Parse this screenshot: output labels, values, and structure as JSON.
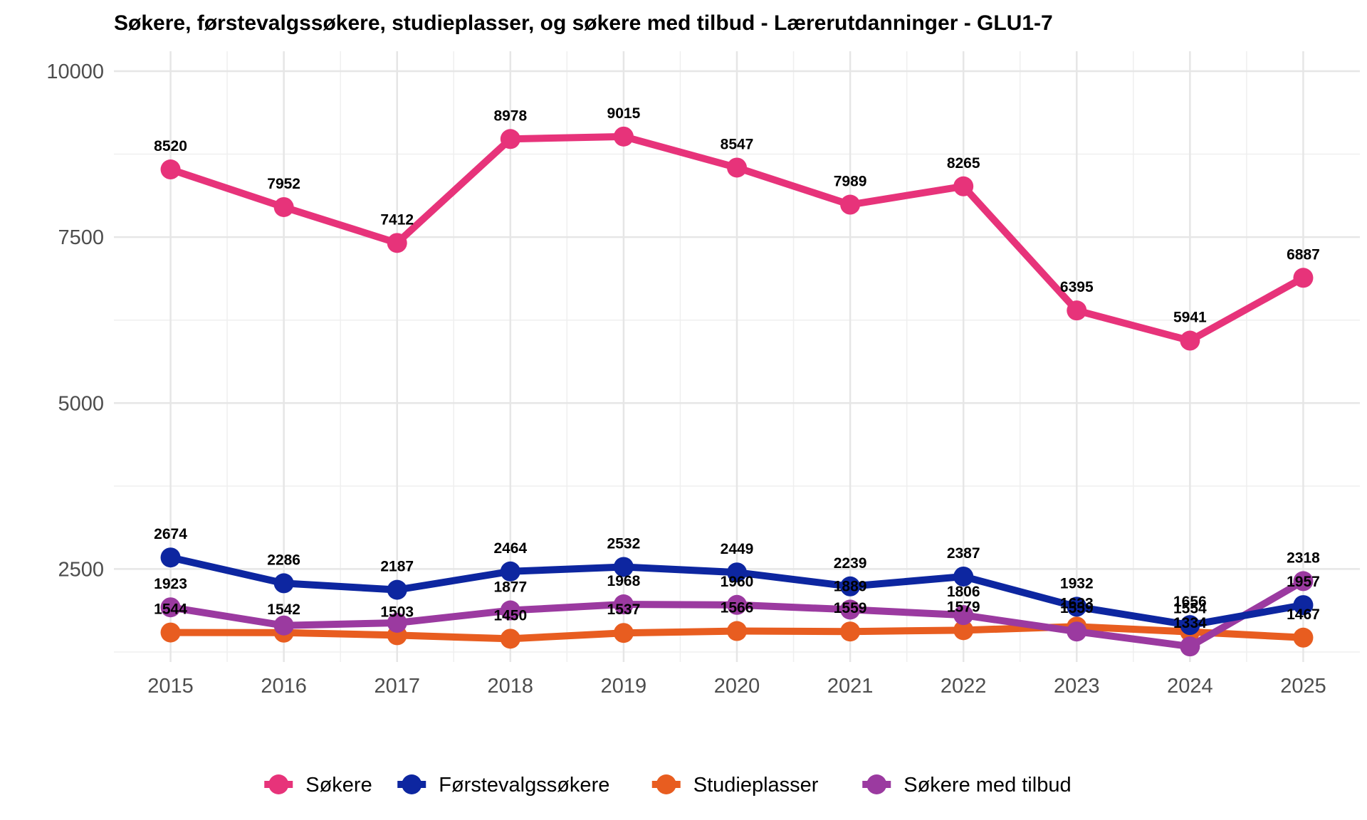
{
  "chart_data": {
    "type": "line",
    "title": "Søkere, førstevalgssøkere, studieplasser, og søkere med tilbud - Lærerutdanninger - GLU1-7",
    "xlabel": "",
    "ylabel": "",
    "x": [
      2015,
      2016,
      2017,
      2018,
      2019,
      2020,
      2021,
      2022,
      2023,
      2024,
      2025
    ],
    "x_tick_labels": [
      "2015",
      "2016",
      "2017",
      "2018",
      "2019",
      "2020",
      "2021",
      "2022",
      "2023",
      "2024",
      "2025"
    ],
    "y_ticks": [
      2500,
      5000,
      7500,
      10000
    ],
    "y_tick_labels": [
      "2500",
      "5000",
      "7500",
      "10000"
    ],
    "ylim": [
      1100,
      10300
    ],
    "grid": true,
    "legend_position": "bottom",
    "series": [
      {
        "name": "Søkere",
        "color": "#E7337A",
        "values": [
          8520,
          7952,
          7412,
          8978,
          9015,
          8547,
          7989,
          8265,
          6395,
          5941,
          6887
        ]
      },
      {
        "name": "Førstevalgssøkere",
        "color": "#0D26A0",
        "values": [
          2674,
          2286,
          2187,
          2464,
          2532,
          2449,
          2239,
          2387,
          1932,
          1656,
          1957
        ]
      },
      {
        "name": "Studieplasser",
        "color": "#E85D20",
        "values": [
          1544,
          1542,
          1503,
          1450,
          1537,
          1566,
          1559,
          1579,
          1633,
          1554,
          1467
        ]
      },
      {
        "name": "Søkere med tilbud",
        "color": "#9B3AA0",
        "values": [
          1923,
          1650,
          1690,
          1877,
          1968,
          1960,
          1889,
          1806,
          1559,
          1334,
          2318
        ]
      }
    ],
    "data_labels": [
      {
        "series": 0,
        "values": [
          "8520",
          "7952",
          "7412",
          "8978",
          "9015",
          "8547",
          "7989",
          "8265",
          "6395",
          "5941",
          "6887"
        ]
      },
      {
        "series": 1,
        "values": [
          "2674",
          "2286",
          "2187",
          "2464",
          "2532",
          "2449",
          "2239",
          "2387",
          "1932",
          "1656",
          "1957"
        ]
      },
      {
        "series": 2,
        "values": [
          "1544",
          "1542",
          "1503",
          "1450",
          "1537",
          "1566",
          "1559",
          "1579",
          "1633",
          "1554",
          "1467"
        ]
      },
      {
        "series": 3,
        "values": [
          "1923",
          "",
          "",
          "1877",
          "1968",
          "1960",
          "1889",
          "1806",
          "1559",
          "1334",
          "2318"
        ]
      }
    ]
  }
}
